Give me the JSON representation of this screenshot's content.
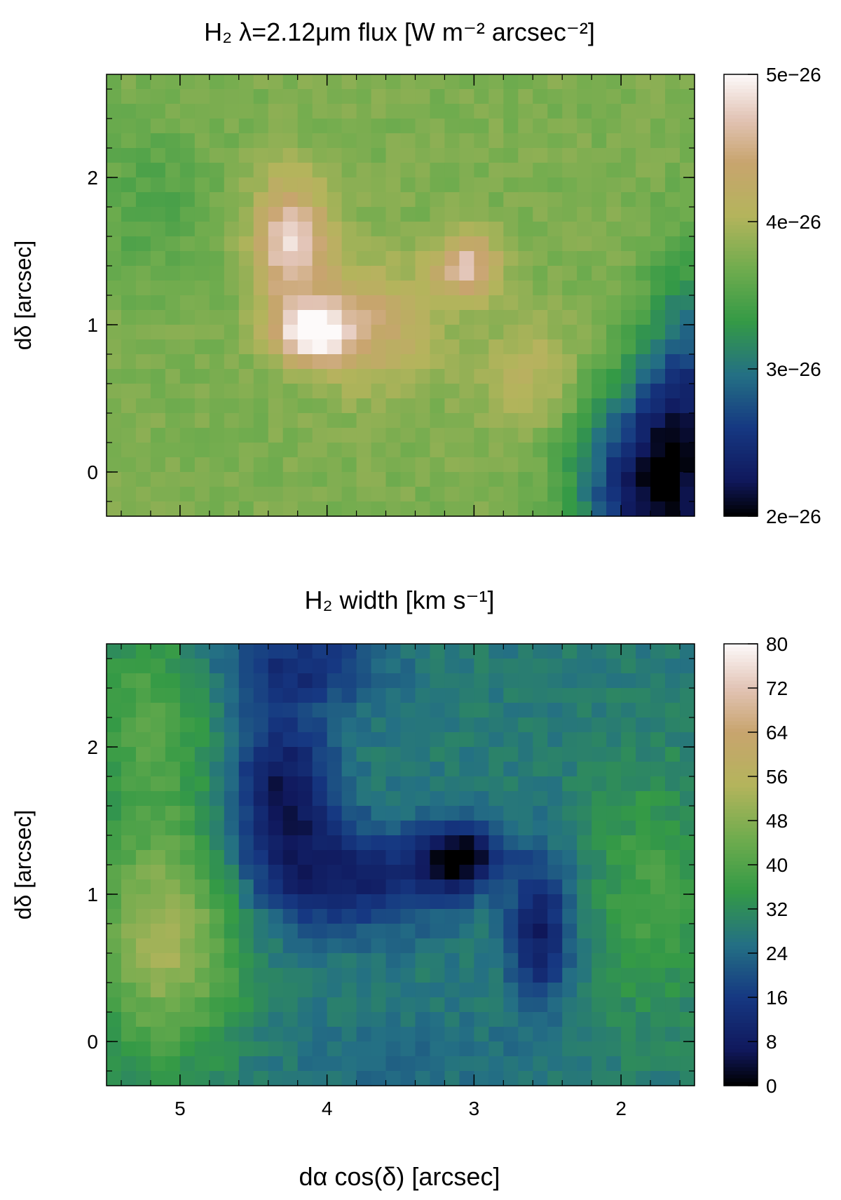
{
  "chart_data": [
    {
      "type": "heatmap",
      "title": "H₂ λ=2.12μm flux [W m⁻² arcsec⁻²]",
      "xlabel": "",
      "ylabel": "dδ [arcsec]",
      "xlim": [
        5.5,
        1.5
      ],
      "ylim": [
        -0.3,
        2.7
      ],
      "x_ticks": [
        "5",
        "4",
        "3",
        "2"
      ],
      "y_ticks": [
        "0",
        "1",
        "2"
      ],
      "x_tick_values": [
        5,
        4,
        3,
        2
      ],
      "y_tick_values": [
        0,
        1,
        2
      ],
      "colorbar": {
        "min": 2e-26,
        "max": 5e-26,
        "tick_values": [
          2e-26,
          3e-26,
          4e-26,
          5e-26
        ],
        "tick_labels": [
          "2e−26",
          "3e−26",
          "4e−26",
          "5e−26"
        ]
      },
      "background_value": 3.75e-26,
      "features": [
        {
          "name": "bright-knot",
          "x": 4.1,
          "y": 0.95,
          "peak": 5e-26,
          "sigma_x": 0.18,
          "sigma_y": 0.14
        },
        {
          "name": "arm",
          "x": 4.25,
          "y": 1.55,
          "peak": 4.8e-26,
          "sigma_x": 0.18,
          "sigma_y": 0.3
        },
        {
          "name": "east-knot",
          "x": 3.05,
          "y": 1.4,
          "peak": 4.7e-26,
          "sigma_x": 0.15,
          "sigma_y": 0.15
        },
        {
          "name": "bridge",
          "x": 3.7,
          "y": 1.0,
          "peak": 4.35e-26,
          "sigma_x": 0.3,
          "sigma_y": 0.3
        },
        {
          "name": "south-tail",
          "x": 2.6,
          "y": 0.65,
          "peak": 4.1e-26,
          "sigma_x": 0.25,
          "sigma_y": 0.3
        },
        {
          "name": "low-se",
          "x": 1.8,
          "y": -0.1,
          "peak": 2.2e-26,
          "sigma_x": 0.35,
          "sigma_y": 0.5
        },
        {
          "name": "low-east-edge",
          "x": 1.55,
          "y": 0.6,
          "peak": 2.9e-26,
          "sigma_x": 0.2,
          "sigma_y": 0.6
        },
        {
          "name": "west-dip",
          "x": 5.2,
          "y": 1.8,
          "peak": 3.5e-26,
          "sigma_x": 0.3,
          "sigma_y": 0.4
        }
      ]
    },
    {
      "type": "heatmap",
      "title": "H₂ width [km s⁻¹]",
      "xlabel": "dα cos(δ) [arcsec]",
      "ylabel": "dδ [arcsec]",
      "xlim": [
        5.5,
        1.5
      ],
      "ylim": [
        -0.3,
        2.7
      ],
      "x_ticks": [
        "5",
        "4",
        "3",
        "2"
      ],
      "y_ticks": [
        "0",
        "1",
        "2"
      ],
      "x_tick_values": [
        5,
        4,
        3,
        2
      ],
      "y_tick_values": [
        0,
        1,
        2
      ],
      "colorbar": {
        "min": 0,
        "max": 80,
        "tick_values": [
          0,
          8,
          16,
          24,
          32,
          40,
          48,
          56,
          64,
          72,
          80
        ],
        "tick_labels": [
          "0",
          "8",
          "16",
          "24",
          "32",
          "40",
          "48",
          "56",
          "64",
          "72",
          "80"
        ]
      },
      "background_value": 28,
      "features": [
        {
          "name": "north-dark-lobe",
          "x": 4.3,
          "y": 1.65,
          "peak": 5,
          "sigma_x": 0.25,
          "sigma_y": 0.4
        },
        {
          "name": "center-dark-knot",
          "x": 3.1,
          "y": 1.25,
          "peak": 1,
          "sigma_x": 0.2,
          "sigma_y": 0.15
        },
        {
          "name": "dark-band",
          "x": 3.8,
          "y": 1.1,
          "peak": 10,
          "sigma_x": 0.45,
          "sigma_y": 0.25
        },
        {
          "name": "south-east-arm",
          "x": 2.55,
          "y": 0.75,
          "peak": 8,
          "sigma_x": 0.15,
          "sigma_y": 0.35
        },
        {
          "name": "top-dark",
          "x": 4.2,
          "y": 2.55,
          "peak": 14,
          "sigma_x": 0.4,
          "sigma_y": 0.2
        },
        {
          "name": "west-high",
          "x": 5.1,
          "y": 0.7,
          "peak": 52,
          "sigma_x": 0.35,
          "sigma_y": 0.55
        },
        {
          "name": "west-high-north",
          "x": 5.2,
          "y": 2.2,
          "peak": 40,
          "sigma_x": 0.3,
          "sigma_y": 0.5
        },
        {
          "name": "east-mid",
          "x": 1.8,
          "y": 1.0,
          "peak": 38,
          "sigma_x": 0.3,
          "sigma_y": 0.6
        },
        {
          "name": "south-mid",
          "x": 3.5,
          "y": -0.1,
          "peak": 24,
          "sigma_x": 0.5,
          "sigma_y": 0.2
        }
      ]
    }
  ]
}
